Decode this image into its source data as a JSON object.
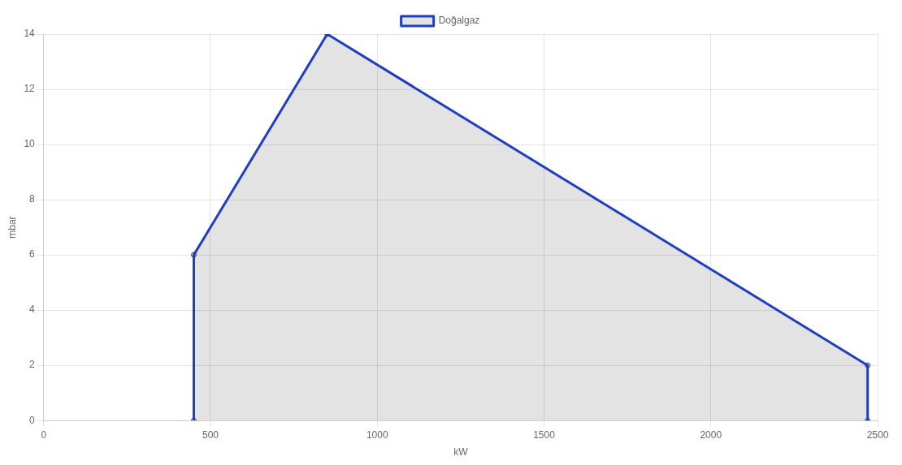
{
  "chart_data": {
    "type": "area",
    "xlabel": "kW",
    "ylabel": "mbar",
    "series": [
      {
        "name": "Doğalgaz",
        "color": "#1f3fc2",
        "x": [
          450,
          450,
          850,
          2470,
          2470
        ],
        "values": [
          0,
          6,
          14,
          2,
          0
        ]
      }
    ],
    "xlim": [
      0,
      2500
    ],
    "xticks": [
      0,
      500,
      1000,
      1500,
      2000,
      2500
    ],
    "ylim": [
      0,
      14
    ],
    "yticks": [
      0,
      2,
      4,
      6,
      8,
      10,
      12,
      14
    ],
    "grid": true,
    "legend": "top",
    "marker": "circle",
    "line_style": "solid"
  }
}
